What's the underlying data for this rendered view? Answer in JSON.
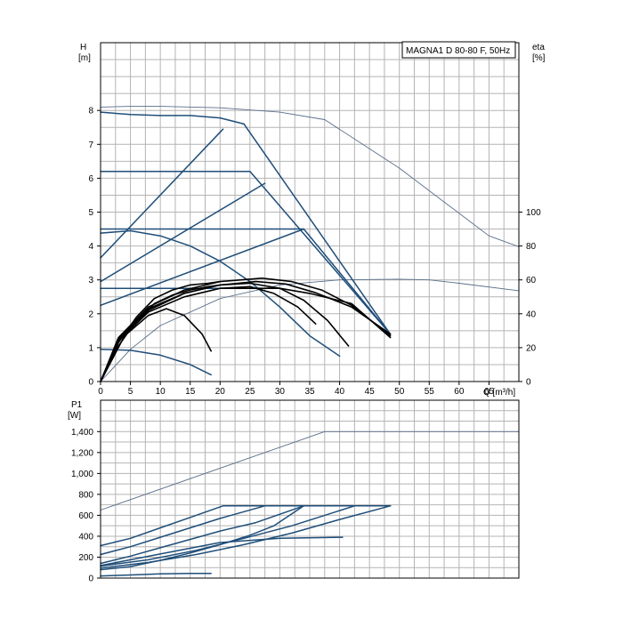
{
  "title_box": "MAGNA1 D 80-80 F, 50Hz",
  "colors": {
    "curve": "#1f4e79",
    "bold_curve": "#000000",
    "thin_curve": "#5a6e8a",
    "grid": "#b4b4b4"
  },
  "chart_data": [
    {
      "type": "line",
      "name": "H_eta",
      "y_left_label": "H",
      "y_left_unit": "[m]",
      "y_right_label": "eta",
      "y_right_unit": "[%]",
      "x_label": "Q [m³/h]",
      "xlim": [
        0,
        70
      ],
      "ylim": [
        0,
        10
      ],
      "y2lim": [
        0,
        200
      ],
      "x_ticks": [
        "0",
        "5",
        "10",
        "15",
        "20",
        "25",
        "30",
        "35",
        "40",
        "45",
        "50",
        "55",
        "60",
        "65"
      ],
      "y_ticks": [
        "0",
        "1",
        "2",
        "3",
        "4",
        "5",
        "6",
        "7",
        "8"
      ],
      "y2_ticks": [
        "0",
        "20",
        "40",
        "60",
        "80",
        "100"
      ],
      "grid": true,
      "series": [
        {
          "style": "thin",
          "x": [
            0,
            5,
            10,
            20,
            30,
            37.5,
            50,
            65,
            70
          ],
          "y": [
            8.1,
            8.12,
            8.12,
            8.08,
            7.95,
            7.73,
            6.3,
            4.3,
            3.98
          ]
        },
        {
          "style": "thin",
          "x": [
            0,
            5,
            10,
            20,
            30,
            40,
            50,
            55,
            60,
            70
          ],
          "y": [
            0,
            0.95,
            1.65,
            2.45,
            2.85,
            3.0,
            3.02,
            3.0,
            2.9,
            2.68
          ]
        },
        {
          "style": "blue",
          "x": [
            0,
            5,
            10,
            15,
            20,
            24
          ],
          "y": [
            7.95,
            7.88,
            7.85,
            7.85,
            7.78,
            7.6
          ]
        },
        {
          "style": "blue",
          "x": [
            24,
            48.5
          ],
          "y": [
            7.6,
            1.4
          ]
        },
        {
          "style": "blue",
          "x": [
            0,
            25,
            48.5
          ],
          "y": [
            6.2,
            6.2,
            1.4
          ]
        },
        {
          "style": "blue",
          "x": [
            0,
            34,
            48.5
          ],
          "y": [
            4.5,
            4.5,
            1.4
          ]
        },
        {
          "style": "blue",
          "x": [
            0,
            20.5
          ],
          "y": [
            3.65,
            7.45
          ]
        },
        {
          "style": "blue",
          "x": [
            0,
            27.5
          ],
          "y": [
            2.95,
            5.85
          ]
        },
        {
          "style": "blue",
          "x": [
            0,
            34
          ],
          "y": [
            2.25,
            4.5
          ]
        },
        {
          "style": "blue",
          "x": [
            0,
            5,
            10,
            15,
            20,
            25,
            30,
            35,
            40
          ],
          "y": [
            4.38,
            4.45,
            4.3,
            4.0,
            3.55,
            2.95,
            2.2,
            1.35,
            0.75
          ]
        },
        {
          "style": "blue",
          "x": [
            0,
            5,
            10,
            15,
            18.5
          ],
          "y": [
            0.95,
            0.92,
            0.78,
            0.5,
            0.2
          ]
        },
        {
          "style": "blue",
          "x": [
            0,
            20,
            26
          ],
          "y": [
            2.75,
            2.75,
            2.75
          ]
        },
        {
          "style": "bold",
          "x": [
            0,
            3,
            8,
            14,
            20,
            27,
            32,
            37,
            42,
            48.5
          ],
          "y": [
            0,
            1.3,
            2.2,
            2.7,
            2.95,
            3.05,
            2.95,
            2.7,
            2.25,
            1.35
          ]
        },
        {
          "style": "bold",
          "x": [
            0,
            3,
            8,
            14,
            20,
            26,
            31,
            36,
            42,
            48.5
          ],
          "y": [
            0,
            1.2,
            2.1,
            2.6,
            2.85,
            2.95,
            2.88,
            2.62,
            2.2,
            1.4
          ]
        },
        {
          "style": "bold",
          "x": [
            0,
            3,
            8,
            14,
            20,
            25,
            30,
            34,
            38,
            41.5
          ],
          "y": [
            0,
            1.25,
            2.15,
            2.6,
            2.85,
            2.9,
            2.75,
            2.4,
            1.8,
            1.05
          ]
        },
        {
          "style": "bold",
          "x": [
            0,
            3,
            8,
            14,
            20,
            25,
            29,
            33,
            36
          ],
          "y": [
            0,
            1.2,
            2.05,
            2.5,
            2.75,
            2.8,
            2.6,
            2.2,
            1.7
          ]
        },
        {
          "style": "bold",
          "x": [
            0,
            3,
            6,
            9,
            12,
            15,
            18,
            20
          ],
          "y": [
            0,
            1.15,
            1.9,
            2.45,
            2.7,
            2.85,
            2.9,
            2.95
          ]
        },
        {
          "style": "bold",
          "x": [
            0,
            3,
            6,
            9,
            12,
            15,
            18,
            20
          ],
          "y": [
            0,
            1.05,
            1.8,
            2.3,
            2.55,
            2.7,
            2.8,
            2.85
          ]
        },
        {
          "style": "bold",
          "x": [
            0,
            4,
            8,
            11,
            14,
            17,
            18.5
          ],
          "y": [
            0,
            1.35,
            1.95,
            2.15,
            1.95,
            1.4,
            0.9
          ]
        },
        {
          "style": "bold",
          "x": [
            20,
            30,
            35,
            42,
            48.5
          ],
          "y": [
            2.75,
            2.75,
            2.6,
            2.3,
            1.3
          ]
        }
      ]
    },
    {
      "type": "line",
      "name": "P1",
      "y_label": "P1",
      "y_unit": "[W]",
      "xlim": [
        0,
        70
      ],
      "ylim": [
        0,
        1700
      ],
      "y_ticks": [
        "0",
        "200",
        "400",
        "600",
        "800",
        "1,000",
        "1,200",
        "1,400"
      ],
      "grid": true,
      "series": [
        {
          "style": "thin",
          "x": [
            0,
            37.5,
            70
          ],
          "y": [
            650,
            1400,
            1400
          ]
        },
        {
          "style": "blue",
          "x": [
            0,
            5,
            10,
            15,
            20.5,
            48.5
          ],
          "y": [
            310,
            380,
            480,
            580,
            690,
            690
          ]
        },
        {
          "style": "blue",
          "x": [
            0,
            5,
            10,
            15,
            20,
            27.5,
            48.5
          ],
          "y": [
            225,
            300,
            390,
            480,
            570,
            690,
            690
          ]
        },
        {
          "style": "blue",
          "x": [
            0,
            5,
            10,
            15,
            20,
            26,
            34,
            48.5
          ],
          "y": [
            140,
            210,
            290,
            370,
            450,
            530,
            690,
            690
          ]
        },
        {
          "style": "blue",
          "x": [
            0,
            8,
            16,
            24,
            32,
            42.5,
            48.5
          ],
          "y": [
            115,
            175,
            265,
            380,
            500,
            690,
            690
          ]
        },
        {
          "style": "blue",
          "x": [
            0,
            8,
            16,
            24,
            32,
            40,
            48.5
          ],
          "y": [
            95,
            150,
            225,
            320,
            430,
            560,
            690
          ]
        },
        {
          "style": "blue",
          "x": [
            0,
            10,
            20,
            30,
            40.5
          ],
          "y": [
            120,
            230,
            340,
            380,
            390
          ]
        },
        {
          "style": "blue",
          "x": [
            0,
            5,
            10,
            15,
            20,
            25,
            29,
            34
          ],
          "y": [
            80,
            110,
            170,
            240,
            320,
            410,
            500,
            690
          ]
        },
        {
          "style": "blue",
          "x": [
            0,
            5,
            10,
            15,
            18.5
          ],
          "y": [
            20,
            30,
            40,
            45,
            45
          ]
        }
      ]
    }
  ]
}
